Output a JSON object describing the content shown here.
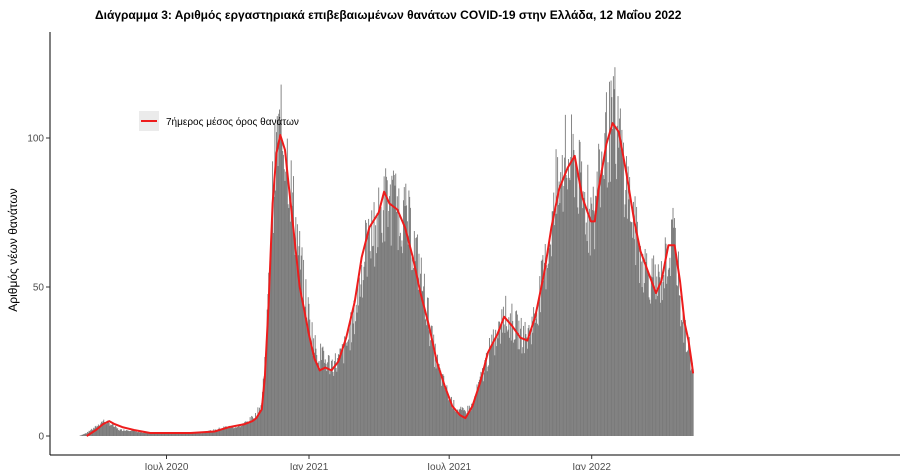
{
  "chart_data": {
    "type": "bar",
    "title": "Διάγραμμα 3: Αριθμός εργαστηριακά επιβεβαιωμένων θανάτων COVID-19 στην Ελλάδα, 12 Μαΐου 2022",
    "xlabel": "",
    "ylabel": "Αριθμός νέων θανάτων",
    "x_range": [
      "2020-03-10",
      "2022-05-12"
    ],
    "ylim": [
      0,
      130
    ],
    "y_ticks": [
      0,
      50,
      100
    ],
    "x_ticks": [
      {
        "date": "2020-07-01",
        "label": "Ιουλ 2020"
      },
      {
        "date": "2021-01-01",
        "label": "Ιαν 2021"
      },
      {
        "date": "2021-07-01",
        "label": "Ιουλ 2021"
      },
      {
        "date": "2022-01-01",
        "label": "Ιαν 2022"
      }
    ],
    "bar_color": "#7a7a7a",
    "line_color": "#ee1c1c",
    "grid": false,
    "legend_position": "top-left",
    "series": [
      {
        "kind": "bar",
        "description": "daily new deaths (approximate readings)",
        "points": [
          [
            "2020-03-10",
            0
          ],
          [
            "2020-03-20",
            1
          ],
          [
            "2020-04-01",
            3
          ],
          [
            "2020-04-10",
            5
          ],
          [
            "2020-04-20",
            4
          ],
          [
            "2020-05-01",
            2
          ],
          [
            "2020-05-15",
            2
          ],
          [
            "2020-06-01",
            1
          ],
          [
            "2020-06-15",
            1
          ],
          [
            "2020-07-01",
            1
          ],
          [
            "2020-07-15",
            1
          ],
          [
            "2020-08-01",
            1
          ],
          [
            "2020-08-15",
            1
          ],
          [
            "2020-09-01",
            2
          ],
          [
            "2020-09-15",
            3
          ],
          [
            "2020-10-01",
            3
          ],
          [
            "2020-10-15",
            5
          ],
          [
            "2020-10-25",
            7
          ],
          [
            "2020-11-01",
            11
          ],
          [
            "2020-11-05",
            25
          ],
          [
            "2020-11-10",
            48
          ],
          [
            "2020-11-15",
            80
          ],
          [
            "2020-11-20",
            95
          ],
          [
            "2020-11-25",
            102
          ],
          [
            "2020-12-01",
            98
          ],
          [
            "2020-12-05",
            92
          ],
          [
            "2020-12-10",
            80
          ],
          [
            "2020-12-15",
            70
          ],
          [
            "2020-12-20",
            60
          ],
          [
            "2020-12-25",
            50
          ],
          [
            "2021-01-01",
            40
          ],
          [
            "2021-01-08",
            30
          ],
          [
            "2021-01-15",
            27
          ],
          [
            "2021-01-22",
            25
          ],
          [
            "2021-01-30",
            24
          ],
          [
            "2021-02-08",
            25
          ],
          [
            "2021-02-18",
            30
          ],
          [
            "2021-03-01",
            40
          ],
          [
            "2021-03-10",
            55
          ],
          [
            "2021-03-20",
            65
          ],
          [
            "2021-04-01",
            72
          ],
          [
            "2021-04-10",
            78
          ],
          [
            "2021-04-20",
            77
          ],
          [
            "2021-05-01",
            75
          ],
          [
            "2021-05-10",
            70
          ],
          [
            "2021-05-20",
            60
          ],
          [
            "2021-06-01",
            45
          ],
          [
            "2021-06-10",
            30
          ],
          [
            "2021-06-20",
            20
          ],
          [
            "2021-07-01",
            13
          ],
          [
            "2021-07-10",
            9
          ],
          [
            "2021-07-20",
            8
          ],
          [
            "2021-07-31",
            10
          ],
          [
            "2021-08-10",
            18
          ],
          [
            "2021-08-20",
            27
          ],
          [
            "2021-09-01",
            33
          ],
          [
            "2021-09-10",
            39
          ],
          [
            "2021-09-20",
            38
          ],
          [
            "2021-10-01",
            34
          ],
          [
            "2021-10-10",
            33
          ],
          [
            "2021-10-20",
            40
          ],
          [
            "2021-11-01",
            55
          ],
          [
            "2021-11-10",
            70
          ],
          [
            "2021-11-20",
            82
          ],
          [
            "2021-12-01",
            90
          ],
          [
            "2021-12-10",
            93
          ],
          [
            "2021-12-20",
            80
          ],
          [
            "2021-12-31",
            72
          ],
          [
            "2022-01-05",
            73
          ],
          [
            "2022-01-10",
            85
          ],
          [
            "2022-01-20",
            100
          ],
          [
            "2022-01-30",
            104
          ],
          [
            "2022-02-05",
            100
          ],
          [
            "2022-02-15",
            85
          ],
          [
            "2022-02-25",
            70
          ],
          [
            "2022-03-05",
            60
          ],
          [
            "2022-03-15",
            55
          ],
          [
            "2022-03-25",
            50
          ],
          [
            "2022-04-01",
            52
          ],
          [
            "2022-04-10",
            62
          ],
          [
            "2022-04-20",
            64
          ],
          [
            "2022-04-25",
            45
          ],
          [
            "2022-05-01",
            35
          ],
          [
            "2022-05-08",
            28
          ],
          [
            "2022-05-12",
            21
          ]
        ]
      },
      {
        "kind": "line",
        "name": "7ήμερος μέσος όρος θανάτων",
        "points": [
          [
            "2020-03-20",
            0
          ],
          [
            "2020-04-01",
            2
          ],
          [
            "2020-04-10",
            4
          ],
          [
            "2020-04-18",
            5
          ],
          [
            "2020-04-25",
            4
          ],
          [
            "2020-05-05",
            3
          ],
          [
            "2020-05-20",
            2
          ],
          [
            "2020-06-10",
            1
          ],
          [
            "2020-07-01",
            1
          ],
          [
            "2020-08-01",
            1
          ],
          [
            "2020-09-01",
            1.5
          ],
          [
            "2020-09-20",
            3
          ],
          [
            "2020-10-10",
            4
          ],
          [
            "2020-10-20",
            5
          ],
          [
            "2020-10-25",
            6
          ],
          [
            "2020-11-01",
            9
          ],
          [
            "2020-11-05",
            20
          ],
          [
            "2020-11-10",
            45
          ],
          [
            "2020-11-15",
            78
          ],
          [
            "2020-11-20",
            95
          ],
          [
            "2020-11-25",
            101
          ],
          [
            "2020-12-01",
            96
          ],
          [
            "2020-12-05",
            86
          ],
          [
            "2020-12-10",
            74
          ],
          [
            "2020-12-15",
            62
          ],
          [
            "2020-12-20",
            50
          ],
          [
            "2020-12-26",
            42
          ],
          [
            "2021-01-01",
            34
          ],
          [
            "2021-01-08",
            26
          ],
          [
            "2021-01-15",
            22
          ],
          [
            "2021-01-22",
            23
          ],
          [
            "2021-01-30",
            22
          ],
          [
            "2021-02-08",
            25
          ],
          [
            "2021-02-18",
            33
          ],
          [
            "2021-03-01",
            45
          ],
          [
            "2021-03-10",
            60
          ],
          [
            "2021-03-20",
            70
          ],
          [
            "2021-04-01",
            75
          ],
          [
            "2021-04-08",
            82
          ],
          [
            "2021-04-15",
            78
          ],
          [
            "2021-04-25",
            76
          ],
          [
            "2021-05-05",
            70
          ],
          [
            "2021-05-15",
            60
          ],
          [
            "2021-05-25",
            48
          ],
          [
            "2021-06-05",
            37
          ],
          [
            "2021-06-15",
            25
          ],
          [
            "2021-06-25",
            17
          ],
          [
            "2021-07-05",
            10
          ],
          [
            "2021-07-15",
            7
          ],
          [
            "2021-07-22",
            6
          ],
          [
            "2021-07-31",
            10
          ],
          [
            "2021-08-10",
            18
          ],
          [
            "2021-08-20",
            28
          ],
          [
            "2021-09-01",
            34
          ],
          [
            "2021-09-10",
            40
          ],
          [
            "2021-09-20",
            37
          ],
          [
            "2021-10-01",
            33
          ],
          [
            "2021-10-10",
            32
          ],
          [
            "2021-10-20",
            40
          ],
          [
            "2021-11-01",
            55
          ],
          [
            "2021-11-10",
            70
          ],
          [
            "2021-11-20",
            83
          ],
          [
            "2021-12-01",
            90
          ],
          [
            "2021-12-10",
            94
          ],
          [
            "2021-12-20",
            80
          ],
          [
            "2021-12-31",
            72
          ],
          [
            "2022-01-05",
            72
          ],
          [
            "2022-01-10",
            83
          ],
          [
            "2022-01-20",
            98
          ],
          [
            "2022-01-28",
            105
          ],
          [
            "2022-02-05",
            102
          ],
          [
            "2022-02-15",
            88
          ],
          [
            "2022-02-25",
            72
          ],
          [
            "2022-03-05",
            62
          ],
          [
            "2022-03-15",
            55
          ],
          [
            "2022-03-25",
            48
          ],
          [
            "2022-04-01",
            52
          ],
          [
            "2022-04-10",
            64
          ],
          [
            "2022-04-18",
            64
          ],
          [
            "2022-04-25",
            52
          ],
          [
            "2022-05-01",
            38
          ],
          [
            "2022-05-06",
            32
          ],
          [
            "2022-05-10",
            25
          ],
          [
            "2022-05-12",
            21
          ]
        ]
      }
    ]
  }
}
